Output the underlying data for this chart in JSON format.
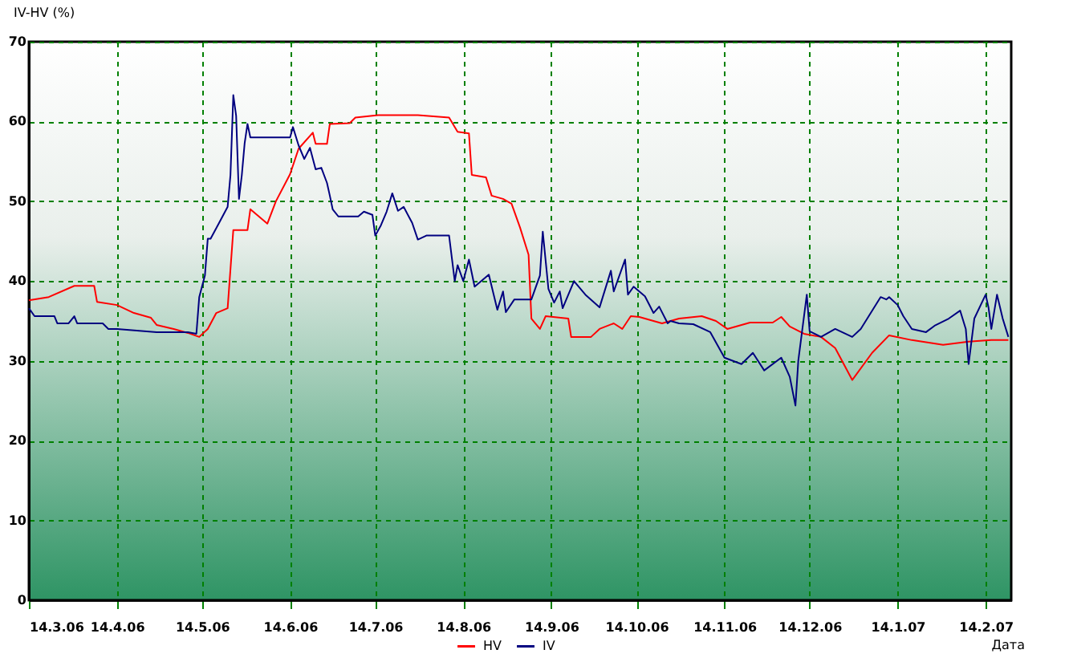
{
  "chart_data": {
    "type": "line",
    "ylabel": "IV-HV (%)",
    "xlabel": "Дата",
    "xlim": [
      "2006-03-14",
      "2007-02-23"
    ],
    "ylim": [
      0,
      70
    ],
    "yticks": [
      0,
      10,
      20,
      30,
      40,
      50,
      60,
      70
    ],
    "xticks": [
      {
        "value": "2006-03-14",
        "label": "14.3.06"
      },
      {
        "value": "2006-04-14",
        "label": "14.4.06"
      },
      {
        "value": "2006-05-14",
        "label": "14.5.06"
      },
      {
        "value": "2006-06-14",
        "label": "14.6.06"
      },
      {
        "value": "2006-07-14",
        "label": "14.7.06"
      },
      {
        "value": "2006-08-14",
        "label": "14.8.06"
      },
      {
        "value": "2006-09-14",
        "label": "14.9.06"
      },
      {
        "value": "2006-10-14",
        "label": "14.10.06"
      },
      {
        "value": "2006-11-14",
        "label": "14.11.06"
      },
      {
        "value": "2006-12-14",
        "label": "14.12.06"
      },
      {
        "value": "2007-01-14",
        "label": "14.1.07"
      },
      {
        "value": "2007-02-14",
        "label": "14.2.07"
      }
    ],
    "grid": true,
    "legend": "bottom",
    "marker": "none",
    "line_style": "solid",
    "series": [
      {
        "name": "HV",
        "color": "#ff0000",
        "x": [
          "2006-03-14",
          "2006-03-21",
          "2006-03-30",
          "2006-04-06",
          "2006-04-07",
          "2006-04-14",
          "2006-04-20",
          "2006-04-26",
          "2006-04-28",
          "2006-05-04",
          "2006-05-09",
          "2006-05-13",
          "2006-05-16",
          "2006-05-19",
          "2006-05-23",
          "2006-05-25",
          "2006-05-30",
          "2006-05-31",
          "2006-06-06",
          "2006-06-09",
          "2006-06-14",
          "2006-06-17",
          "2006-06-22",
          "2006-06-23",
          "2006-06-27",
          "2006-06-28",
          "2006-07-05",
          "2006-07-07",
          "2006-07-15",
          "2006-07-29",
          "2006-08-09",
          "2006-08-12",
          "2006-08-16",
          "2006-08-17",
          "2006-08-22",
          "2006-08-24",
          "2006-08-28",
          "2006-08-31",
          "2006-09-03",
          "2006-09-06",
          "2006-09-07",
          "2006-09-10",
          "2006-09-12",
          "2006-09-20",
          "2006-09-21",
          "2006-09-28",
          "2006-10-01",
          "2006-10-06",
          "2006-10-09",
          "2006-10-12",
          "2006-10-15",
          "2006-10-23",
          "2006-10-29",
          "2006-11-06",
          "2006-11-11",
          "2006-11-15",
          "2006-11-23",
          "2006-12-01",
          "2006-12-04",
          "2006-12-07",
          "2006-12-12",
          "2006-12-18",
          "2006-12-23",
          "2006-12-29",
          "2007-01-05",
          "2007-01-11",
          "2007-01-19",
          "2007-01-30",
          "2007-02-08",
          "2007-02-16",
          "2007-02-22"
        ],
        "values": [
          37.6,
          38,
          39.4,
          39.4,
          37.4,
          37,
          36,
          35.4,
          34.5,
          34,
          33.5,
          33,
          34,
          36,
          36.6,
          46.4,
          46.4,
          49,
          47.2,
          50,
          53.4,
          56.6,
          58.6,
          57.2,
          57.2,
          59.7,
          59.8,
          60.5,
          60.8,
          60.8,
          60.5,
          58.7,
          58.5,
          53.3,
          53,
          50.7,
          50.3,
          49.7,
          46.7,
          43.3,
          35.3,
          34,
          35.6,
          35.3,
          33,
          33,
          34,
          34.7,
          34,
          35.6,
          35.5,
          34.7,
          35.3,
          35.6,
          35,
          34,
          34.8,
          34.8,
          35.5,
          34.3,
          33.4,
          33,
          31.6,
          27.6,
          31,
          33.2,
          32.6,
          32,
          32.4,
          32.6,
          32.6
        ]
      },
      {
        "name": "IV",
        "color": "#000080",
        "x": [
          "2006-03-14",
          "2006-03-16",
          "2006-03-23",
          "2006-03-24",
          "2006-03-28",
          "2006-03-30",
          "2006-03-31",
          "2006-04-09",
          "2006-04-11",
          "2006-04-14",
          "2006-04-28",
          "2006-05-09",
          "2006-05-12",
          "2006-05-13",
          "2006-05-15",
          "2006-05-16",
          "2006-05-17",
          "2006-05-20",
          "2006-05-23",
          "2006-05-24",
          "2006-05-25",
          "2006-05-26",
          "2006-05-27",
          "2006-05-28",
          "2006-05-29",
          "2006-05-30",
          "2006-05-31",
          "2006-06-14",
          "2006-06-15",
          "2006-06-17",
          "2006-06-19",
          "2006-06-21",
          "2006-06-23",
          "2006-06-25",
          "2006-06-27",
          "2006-06-28",
          "2006-06-29",
          "2006-07-01",
          "2006-07-08",
          "2006-07-10",
          "2006-07-13",
          "2006-07-14",
          "2006-07-16",
          "2006-07-18",
          "2006-07-20",
          "2006-07-22",
          "2006-07-24",
          "2006-07-27",
          "2006-07-29",
          "2006-08-01",
          "2006-08-09",
          "2006-08-11",
          "2006-08-12",
          "2006-08-14",
          "2006-08-16",
          "2006-08-18",
          "2006-08-23",
          "2006-08-26",
          "2006-08-28",
          "2006-08-29",
          "2006-09-01",
          "2006-09-07",
          "2006-09-10",
          "2006-09-11",
          "2006-09-13",
          "2006-09-15",
          "2006-09-17",
          "2006-09-18",
          "2006-09-22",
          "2006-09-26",
          "2006-10-01",
          "2006-10-05",
          "2006-10-06",
          "2006-10-10",
          "2006-10-11",
          "2006-10-13",
          "2006-10-17",
          "2006-10-20",
          "2006-10-22",
          "2006-10-25",
          "2006-10-26",
          "2006-10-29",
          "2006-11-03",
          "2006-11-09",
          "2006-11-14",
          "2006-11-20",
          "2006-11-24",
          "2006-11-28",
          "2006-12-04",
          "2006-12-07",
          "2006-12-09",
          "2006-12-10",
          "2006-12-13",
          "2006-12-14",
          "2006-12-18",
          "2006-12-23",
          "2006-12-29",
          "2007-01-01",
          "2007-01-08",
          "2007-01-10",
          "2007-01-11",
          "2007-01-14",
          "2007-01-16",
          "2007-01-19",
          "2007-01-24",
          "2007-01-27",
          "2007-02-01",
          "2007-02-05",
          "2007-02-07",
          "2007-02-08",
          "2007-02-10",
          "2007-02-14",
          "2007-02-15",
          "2007-02-16",
          "2007-02-18",
          "2007-02-20",
          "2007-02-22"
        ],
        "values": [
          36.6,
          35.6,
          35.6,
          34.7,
          34.7,
          35.6,
          34.7,
          34.7,
          34,
          34,
          33.6,
          33.6,
          33.4,
          38,
          40.7,
          45.3,
          45.3,
          47.3,
          49.3,
          53.3,
          63.3,
          60.7,
          50.3,
          53.3,
          57.3,
          59.7,
          58,
          58,
          59.3,
          57,
          55.3,
          56.7,
          54,
          54.2,
          52.3,
          50.7,
          49,
          48.1,
          48.1,
          48.7,
          48.3,
          45.7,
          47,
          48.7,
          51,
          48.8,
          49.3,
          47.3,
          45.2,
          45.7,
          45.7,
          40,
          42,
          40,
          42.7,
          39.3,
          40.8,
          36.4,
          38.7,
          36.1,
          37.7,
          37.7,
          40.7,
          46.2,
          39,
          37.3,
          38.7,
          36.6,
          40,
          38.3,
          36.7,
          41.3,
          38.7,
          42.7,
          38.3,
          39.3,
          38.1,
          36,
          36.8,
          34.7,
          35,
          34.7,
          34.6,
          33.6,
          30.4,
          29.6,
          31,
          28.8,
          30.4,
          28,
          24.4,
          30,
          38.3,
          33.7,
          33,
          34,
          33,
          34,
          38,
          37.7,
          38,
          37,
          35.6,
          34,
          33.6,
          34.4,
          35.3,
          36.3,
          34,
          29.6,
          35.3,
          38.3,
          36.7,
          34,
          38.3,
          35.3,
          33
        ]
      }
    ]
  }
}
